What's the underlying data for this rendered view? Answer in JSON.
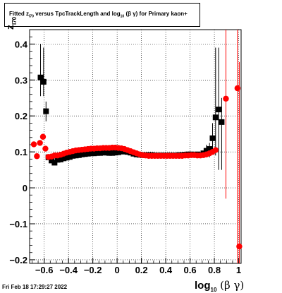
{
  "title": {
    "pre": "Fitted  z",
    "sub1": "I70",
    "mid": "  versus TpcTrackLength and log",
    "sub2": "10",
    "greek": " (β  γ)",
    "post": " for Primary kaon+"
  },
  "ylabel": {
    "main": "z",
    "sub": "I70"
  },
  "xlabel": {
    "main": "log",
    "sub": "10",
    "greek": " (β γ)"
  },
  "datestamp": "Fri Feb 18 17:29:27 2022",
  "colors": {
    "series_black": "#000000",
    "series_red": "#ff0000"
  },
  "chart_data": {
    "type": "scatter",
    "xlim": [
      -0.72,
      1.02
    ],
    "ylim": [
      -0.21,
      0.44
    ],
    "grid": true,
    "x_ticks": [
      {
        "v": -0.6,
        "label": "−0.6"
      },
      {
        "v": -0.4,
        "label": "−0.4"
      },
      {
        "v": -0.2,
        "label": "−0.2"
      },
      {
        "v": 0,
        "label": "0"
      },
      {
        "v": 0.2,
        "label": "0.2"
      },
      {
        "v": 0.4,
        "label": "0.4"
      },
      {
        "v": 0.6,
        "label": "0.6"
      },
      {
        "v": 0.8,
        "label": "0.8"
      },
      {
        "v": 1,
        "label": "1"
      }
    ],
    "y_ticks": [
      {
        "v": -0.2,
        "label": "−0.2"
      },
      {
        "v": -0.1,
        "label": "−0.1"
      },
      {
        "v": 0,
        "label": "0"
      },
      {
        "v": 0.1,
        "label": "0.1"
      },
      {
        "v": 0.2,
        "label": "0.2"
      },
      {
        "v": 0.3,
        "label": "0.3"
      },
      {
        "v": 0.4,
        "label": "0.4"
      }
    ],
    "series": [
      {
        "color": "#000000",
        "points": [
          {
            "x": -0.63,
            "y": 0.307,
            "lo": 0.255,
            "hi": 0.4
          },
          {
            "x": -0.605,
            "y": 0.295,
            "lo": 0.255,
            "hi": 0.39
          },
          {
            "x": -0.585,
            "y": 0.213,
            "lo": 0.185,
            "hi": 0.24
          },
          {
            "x": -0.565,
            "y": 0.085
          },
          {
            "x": -0.54,
            "y": 0.076
          },
          {
            "x": -0.515,
            "y": 0.07
          },
          {
            "x": -0.49,
            "y": 0.078
          },
          {
            "x": -0.465,
            "y": 0.079
          },
          {
            "x": -0.44,
            "y": 0.082
          },
          {
            "x": -0.415,
            "y": 0.084
          },
          {
            "x": -0.39,
            "y": 0.086
          },
          {
            "x": -0.365,
            "y": 0.089
          },
          {
            "x": -0.34,
            "y": 0.09
          },
          {
            "x": -0.315,
            "y": 0.091
          },
          {
            "x": -0.29,
            "y": 0.093
          },
          {
            "x": -0.265,
            "y": 0.094
          },
          {
            "x": -0.24,
            "y": 0.095
          },
          {
            "x": -0.215,
            "y": 0.096
          },
          {
            "x": -0.19,
            "y": 0.096
          },
          {
            "x": -0.165,
            "y": 0.097
          },
          {
            "x": -0.14,
            "y": 0.097
          },
          {
            "x": -0.115,
            "y": 0.098
          },
          {
            "x": -0.09,
            "y": 0.098
          },
          {
            "x": -0.065,
            "y": 0.097
          },
          {
            "x": -0.04,
            "y": 0.097
          },
          {
            "x": -0.015,
            "y": 0.098
          },
          {
            "x": 0.01,
            "y": 0.099
          },
          {
            "x": 0.035,
            "y": 0.101
          },
          {
            "x": 0.06,
            "y": 0.101
          },
          {
            "x": 0.085,
            "y": 0.1
          },
          {
            "x": 0.11,
            "y": 0.098
          },
          {
            "x": 0.135,
            "y": 0.095
          },
          {
            "x": 0.16,
            "y": 0.093
          },
          {
            "x": 0.185,
            "y": 0.092
          },
          {
            "x": 0.21,
            "y": 0.091
          },
          {
            "x": 0.235,
            "y": 0.091
          },
          {
            "x": 0.26,
            "y": 0.091
          },
          {
            "x": 0.285,
            "y": 0.091
          },
          {
            "x": 0.31,
            "y": 0.09
          },
          {
            "x": 0.335,
            "y": 0.09
          },
          {
            "x": 0.36,
            "y": 0.09
          },
          {
            "x": 0.385,
            "y": 0.09
          },
          {
            "x": 0.41,
            "y": 0.09
          },
          {
            "x": 0.435,
            "y": 0.09
          },
          {
            "x": 0.46,
            "y": 0.09
          },
          {
            "x": 0.485,
            "y": 0.09
          },
          {
            "x": 0.51,
            "y": 0.091
          },
          {
            "x": 0.535,
            "y": 0.091
          },
          {
            "x": 0.56,
            "y": 0.092
          },
          {
            "x": 0.585,
            "y": 0.093
          },
          {
            "x": 0.61,
            "y": 0.093
          },
          {
            "x": 0.635,
            "y": 0.092
          },
          {
            "x": 0.66,
            "y": 0.093
          },
          {
            "x": 0.685,
            "y": 0.092
          },
          {
            "x": 0.71,
            "y": 0.096
          },
          {
            "x": 0.735,
            "y": 0.103,
            "lo": 0.085,
            "hi": 0.12
          },
          {
            "x": 0.76,
            "y": 0.108,
            "lo": 0.085,
            "hi": 0.125
          },
          {
            "x": 0.785,
            "y": 0.138,
            "lo": 0.1,
            "hi": 0.18
          },
          {
            "x": 0.81,
            "y": 0.196,
            "lo": 0.09,
            "hi": 0.39
          },
          {
            "x": 0.835,
            "y": 0.218,
            "lo": 0.05,
            "hi": 0.39
          },
          {
            "x": 0.86,
            "y": 0.183,
            "lo": 0.05,
            "hi": 0.25
          }
        ]
      },
      {
        "color": "#ff0000",
        "points": [
          {
            "x": -0.685,
            "y": 0.121
          },
          {
            "x": -0.66,
            "y": 0.088
          },
          {
            "x": -0.635,
            "y": 0.125
          },
          {
            "x": -0.61,
            "y": 0.142
          },
          {
            "x": -0.59,
            "y": 0.109
          },
          {
            "x": -0.565,
            "y": 0.086
          },
          {
            "x": -0.54,
            "y": 0.087
          },
          {
            "x": -0.515,
            "y": 0.09
          },
          {
            "x": -0.49,
            "y": 0.09
          },
          {
            "x": -0.465,
            "y": 0.092
          },
          {
            "x": -0.44,
            "y": 0.095
          },
          {
            "x": -0.415,
            "y": 0.098
          },
          {
            "x": -0.39,
            "y": 0.1
          },
          {
            "x": -0.365,
            "y": 0.102
          },
          {
            "x": -0.34,
            "y": 0.104
          },
          {
            "x": -0.315,
            "y": 0.105
          },
          {
            "x": -0.29,
            "y": 0.106
          },
          {
            "x": -0.265,
            "y": 0.107
          },
          {
            "x": -0.24,
            "y": 0.108
          },
          {
            "x": -0.215,
            "y": 0.109
          },
          {
            "x": -0.19,
            "y": 0.109
          },
          {
            "x": -0.165,
            "y": 0.11
          },
          {
            "x": -0.14,
            "y": 0.11
          },
          {
            "x": -0.115,
            "y": 0.111
          },
          {
            "x": -0.09,
            "y": 0.111
          },
          {
            "x": -0.065,
            "y": 0.111
          },
          {
            "x": -0.04,
            "y": 0.112
          },
          {
            "x": -0.015,
            "y": 0.112
          },
          {
            "x": 0.01,
            "y": 0.111
          },
          {
            "x": 0.035,
            "y": 0.11
          },
          {
            "x": 0.06,
            "y": 0.108
          },
          {
            "x": 0.085,
            "y": 0.105
          },
          {
            "x": 0.11,
            "y": 0.102
          },
          {
            "x": 0.135,
            "y": 0.099
          },
          {
            "x": 0.16,
            "y": 0.096
          },
          {
            "x": 0.185,
            "y": 0.093
          },
          {
            "x": 0.21,
            "y": 0.091
          },
          {
            "x": 0.235,
            "y": 0.09
          },
          {
            "x": 0.26,
            "y": 0.089
          },
          {
            "x": 0.285,
            "y": 0.089
          },
          {
            "x": 0.31,
            "y": 0.089
          },
          {
            "x": 0.335,
            "y": 0.089
          },
          {
            "x": 0.36,
            "y": 0.089
          },
          {
            "x": 0.385,
            "y": 0.089
          },
          {
            "x": 0.41,
            "y": 0.089
          },
          {
            "x": 0.435,
            "y": 0.089
          },
          {
            "x": 0.46,
            "y": 0.089
          },
          {
            "x": 0.485,
            "y": 0.089
          },
          {
            "x": 0.51,
            "y": 0.089
          },
          {
            "x": 0.535,
            "y": 0.089
          },
          {
            "x": 0.56,
            "y": 0.09
          },
          {
            "x": 0.585,
            "y": 0.09
          },
          {
            "x": 0.61,
            "y": 0.091
          },
          {
            "x": 0.635,
            "y": 0.091
          },
          {
            "x": 0.66,
            "y": 0.09
          },
          {
            "x": 0.685,
            "y": 0.09
          },
          {
            "x": 0.71,
            "y": 0.091
          },
          {
            "x": 0.735,
            "y": 0.093
          },
          {
            "x": 0.76,
            "y": 0.096
          },
          {
            "x": 0.785,
            "y": 0.1
          },
          {
            "x": 0.81,
            "y": 0.105
          },
          {
            "x": 0.895,
            "y": 0.248,
            "lo": -0.03,
            "hi": 0.44
          },
          {
            "x": 0.99,
            "y": 0.277,
            "lo": -0.21,
            "hi": 0.44
          },
          {
            "x": 1.005,
            "y": -0.163,
            "lo": -0.21,
            "hi": 0.35
          }
        ]
      }
    ]
  }
}
